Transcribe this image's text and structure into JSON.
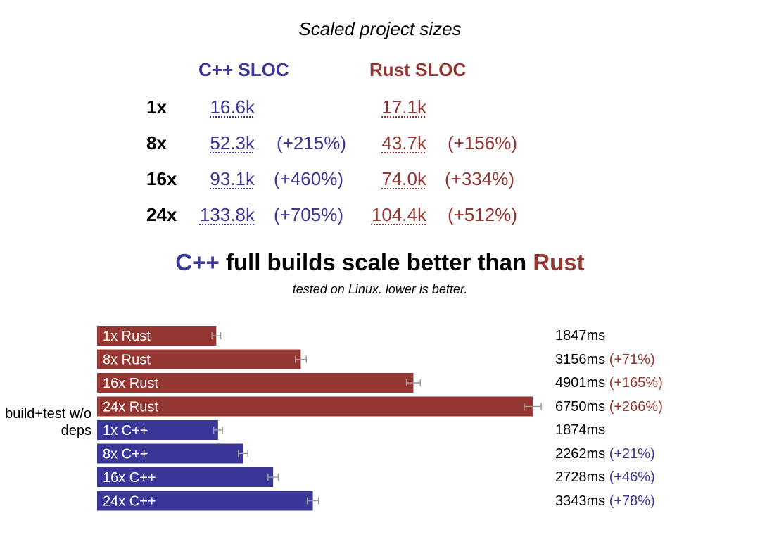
{
  "sizes": {
    "title": "Scaled project sizes",
    "cpp_header": "C++ SLOC",
    "rust_header": "Rust SLOC",
    "rows": [
      {
        "label": "1x",
        "cpp": "16.6k",
        "cpp_pct": "",
        "rust": "17.1k",
        "rust_pct": ""
      },
      {
        "label": "8x",
        "cpp": "52.3k",
        "cpp_pct": "(+215%)",
        "rust": "43.7k",
        "rust_pct": "(+156%)"
      },
      {
        "label": "16x",
        "cpp": "93.1k",
        "cpp_pct": "(+460%)",
        "rust": "74.0k",
        "rust_pct": "(+334%)"
      },
      {
        "label": "24x",
        "cpp": "133.8k",
        "cpp_pct": "(+705%)",
        "rust": "104.4k",
        "rust_pct": "(+512%)"
      }
    ]
  },
  "headline": {
    "cpp": "C++",
    "middle": " full builds scale better than ",
    "rust": "Rust"
  },
  "subtitle": "tested on Linux. lower is better.",
  "colors": {
    "rust": "#943732",
    "cpp": "#3b3799"
  },
  "chart_data": {
    "type": "bar",
    "orientation": "horizontal",
    "title": "C++ full builds scale better than Rust",
    "subtitle": "tested on Linux. lower is better.",
    "ylabel": "build+test w/o deps",
    "unit": "ms",
    "categories": [
      "1x Rust",
      "8x Rust",
      "16x Rust",
      "24x Rust",
      "1x C++",
      "8x C++",
      "16x C++",
      "24x C++"
    ],
    "values": [
      1847,
      3156,
      4901,
      6750,
      1874,
      2262,
      2728,
      3343
    ],
    "value_labels": [
      "1847ms",
      "3156ms",
      "4901ms",
      "6750ms",
      "1874ms",
      "2262ms",
      "2728ms",
      "3343ms"
    ],
    "change_labels": [
      "",
      "(+71%)",
      "(+165%)",
      "(+266%)",
      "",
      "(+21%)",
      "(+46%)",
      "(+78%)"
    ],
    "groups": [
      "rust",
      "rust",
      "rust",
      "rust",
      "cpp",
      "cpp",
      "cpp",
      "cpp"
    ],
    "error_bars": true,
    "xlim": [
      0,
      7500
    ],
    "grid": false
  }
}
